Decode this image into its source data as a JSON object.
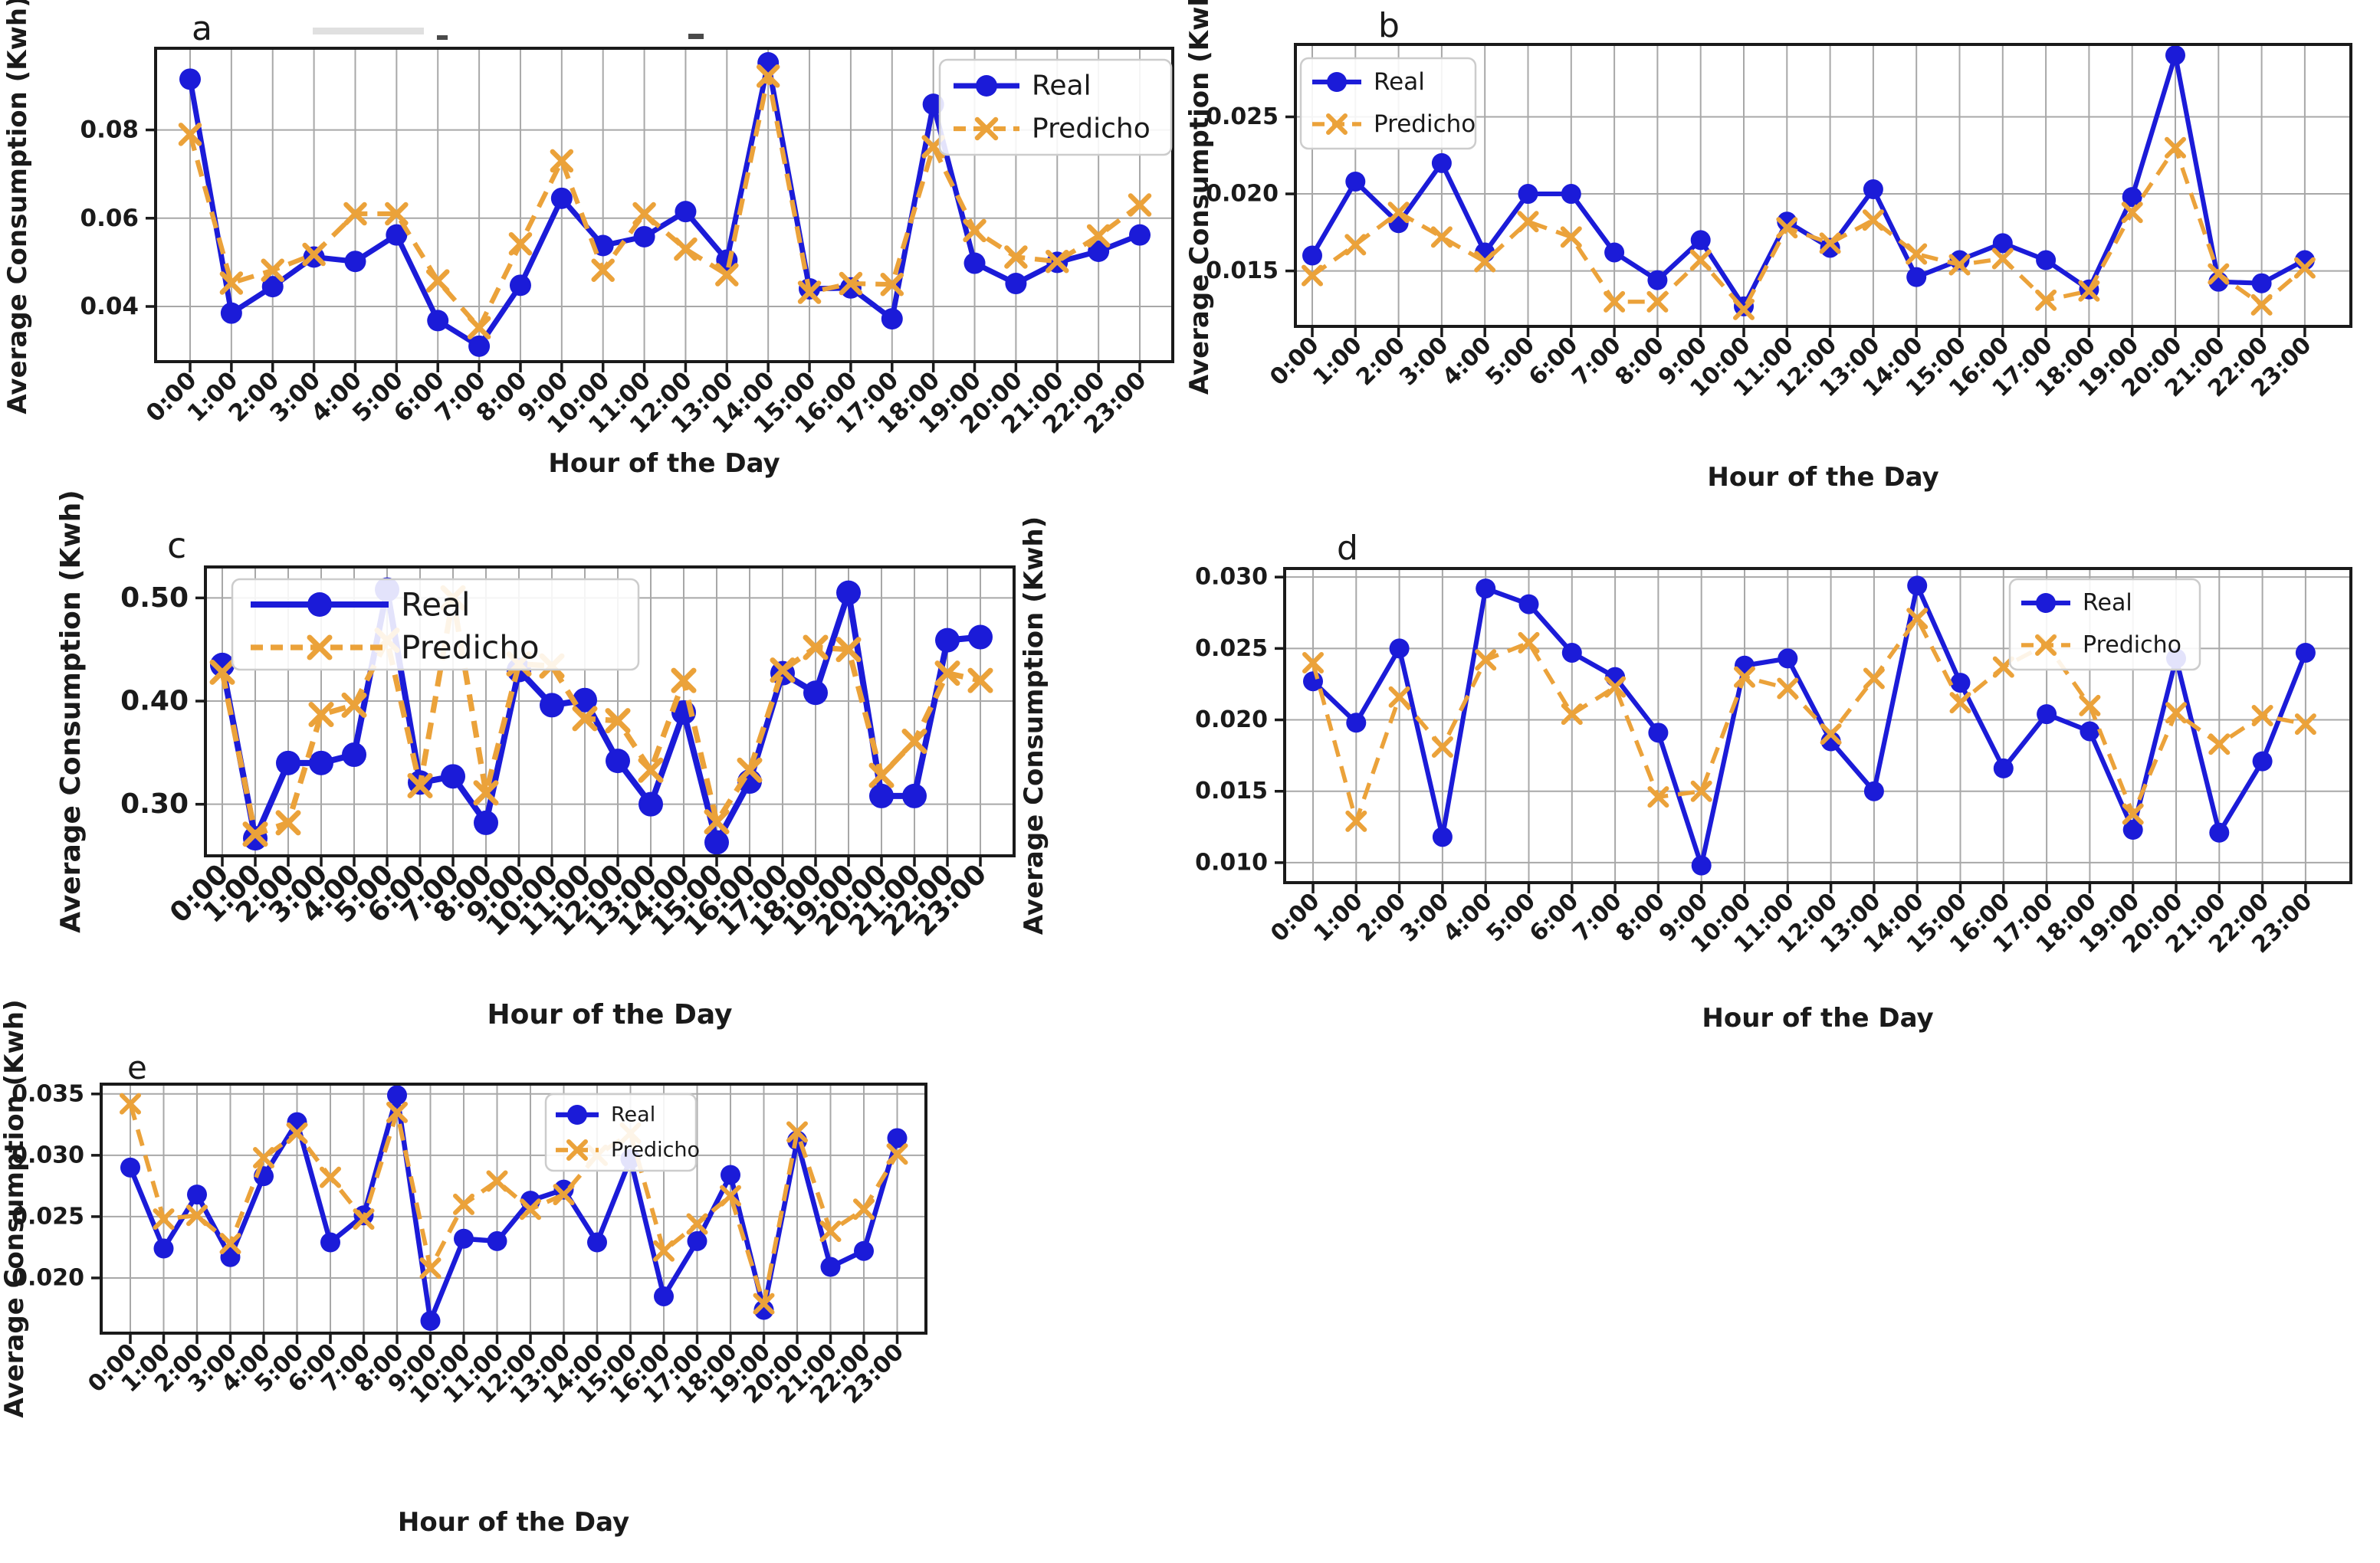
{
  "figure": {
    "xlabel": "Hour of the Day",
    "ylabel": "Average Consumption (Kwh)",
    "legend": {
      "real_label": "Real",
      "predicho_label": "Predicho"
    },
    "artifact_marks": [
      "smudge",
      "dash",
      "dash"
    ]
  },
  "colors": {
    "real": "#1b1bd8",
    "predicho": "#eba23a",
    "grid": "#a8a8a8",
    "spine": "#1a1a1a",
    "text": "#1a1a1a",
    "legend_border": "#cccccc",
    "legend_bg": "rgba(255,255,255,0.88)"
  },
  "chart_data": [
    {
      "id": "a",
      "type": "line",
      "title": "a",
      "xlabel": "Hour of the Day",
      "ylabel": "Average Consumption (Kwh)",
      "categories": [
        "0:00",
        "1:00",
        "2:00",
        "3:00",
        "4:00",
        "5:00",
        "6:00",
        "7:00",
        "8:00",
        "9:00",
        "10:00",
        "11:00",
        "12:00",
        "13:00",
        "14:00",
        "15:00",
        "16:00",
        "17:00",
        "18:00",
        "19:00",
        "20:00",
        "21:00",
        "22:00",
        "23:00"
      ],
      "yticks": [
        0.04,
        0.06,
        0.08
      ],
      "ytick_labels": [
        "0.04",
        "0.06",
        "0.08"
      ],
      "ylim": [
        0.0275,
        0.0985
      ],
      "grid": true,
      "legend_position": "top-right",
      "series": [
        {
          "name": "Real",
          "values": [
            0.0915,
            0.0385,
            0.0445,
            0.0512,
            0.0502,
            0.0562,
            0.0368,
            0.031,
            0.0448,
            0.0645,
            0.0538,
            0.0558,
            0.0615,
            0.0505,
            0.0952,
            0.044,
            0.0442,
            0.0372,
            0.0858,
            0.0498,
            0.0452,
            0.05,
            0.0525,
            0.0562
          ]
        },
        {
          "name": "Predicho",
          "values": [
            0.079,
            0.0453,
            0.0482,
            0.0518,
            0.061,
            0.061,
            0.0458,
            0.0352,
            0.0542,
            0.073,
            0.0482,
            0.061,
            0.053,
            0.0472,
            0.0922,
            0.0432,
            0.0452,
            0.045,
            0.0762,
            0.0572,
            0.0512,
            0.0502,
            0.056,
            0.063
          ]
        }
      ]
    },
    {
      "id": "b",
      "type": "line",
      "title": "b",
      "xlabel": "Hour of the Day",
      "ylabel": "Average Consumption (Kwh)",
      "categories": [
        "0:00",
        "1:00",
        "2:00",
        "3:00",
        "4:00",
        "5:00",
        "6:00",
        "7:00",
        "8:00",
        "9:00",
        "10:00",
        "11:00",
        "12:00",
        "13:00",
        "14:00",
        "15:00",
        "16:00",
        "17:00",
        "18:00",
        "19:00",
        "20:00",
        "21:00",
        "22:00",
        "23:00"
      ],
      "yticks": [
        0.015,
        0.02,
        0.025
      ],
      "ytick_labels": [
        "0.015",
        "0.020",
        "0.025"
      ],
      "ylim": [
        0.0114,
        0.0297
      ],
      "grid": true,
      "legend_position": "top-left",
      "series": [
        {
          "name": "Real",
          "values": [
            0.016,
            0.0208,
            0.0181,
            0.022,
            0.0162,
            0.02,
            0.02,
            0.0162,
            0.0144,
            0.017,
            0.0127,
            0.0182,
            0.0165,
            0.0203,
            0.0146,
            0.0157,
            0.0168,
            0.0157,
            0.0138,
            0.0198,
            0.029,
            0.0143,
            0.0142,
            0.0157
          ]
        },
        {
          "name": "Predicho",
          "values": [
            0.0147,
            0.0167,
            0.0188,
            0.0172,
            0.0156,
            0.0182,
            0.0172,
            0.013,
            0.013,
            0.0157,
            0.0125,
            0.0178,
            0.0168,
            0.0183,
            0.0161,
            0.0154,
            0.0158,
            0.0131,
            0.0137,
            0.0188,
            0.023,
            0.0148,
            0.0128,
            0.0152
          ]
        }
      ]
    },
    {
      "id": "c",
      "type": "line",
      "title": "c",
      "xlabel": "Hour of the Day",
      "ylabel": "Average Consumption (Kwh)",
      "categories": [
        "0:00",
        "1:00",
        "2:00",
        "3:00",
        "4:00",
        "5:00",
        "6:00",
        "7:00",
        "8:00",
        "9:00",
        "10:00",
        "11:00",
        "12:00",
        "13:00",
        "14:00",
        "15:00",
        "16:00",
        "17:00",
        "18:00",
        "19:00",
        "20:00",
        "21:00",
        "22:00",
        "23:00"
      ],
      "yticks": [
        0.3,
        0.4,
        0.5
      ],
      "ytick_labels": [
        "0.30",
        "0.40",
        "0.50"
      ],
      "ylim": [
        0.25,
        0.53
      ],
      "grid": true,
      "legend_position": "top-left",
      "series": [
        {
          "name": "Real",
          "values": [
            0.435,
            0.267,
            0.34,
            0.34,
            0.348,
            0.508,
            0.321,
            0.327,
            0.282,
            0.43,
            0.396,
            0.401,
            0.342,
            0.3,
            0.389,
            0.263,
            0.322,
            0.427,
            0.408,
            0.505,
            0.308,
            0.308,
            0.459,
            0.462
          ]
        },
        {
          "name": "Predicho",
          "values": [
            0.428,
            0.271,
            0.282,
            0.387,
            0.396,
            0.459,
            0.318,
            0.5,
            0.311,
            0.436,
            0.434,
            0.383,
            0.381,
            0.333,
            0.42,
            0.283,
            0.333,
            0.43,
            0.452,
            0.45,
            0.328,
            0.361,
            0.427,
            0.42
          ]
        }
      ]
    },
    {
      "id": "d",
      "type": "line",
      "title": "d",
      "xlabel": "Hour of the Day",
      "ylabel": "Average Consumption (Kwh)",
      "categories": [
        "0:00",
        "1:00",
        "2:00",
        "3:00",
        "4:00",
        "5:00",
        "6:00",
        "7:00",
        "8:00",
        "9:00",
        "10:00",
        "11:00",
        "12:00",
        "13:00",
        "14:00",
        "15:00",
        "16:00",
        "17:00",
        "18:00",
        "19:00",
        "20:00",
        "21:00",
        "22:00",
        "23:00"
      ],
      "yticks": [
        0.01,
        0.015,
        0.02,
        0.025,
        0.03
      ],
      "ytick_labels": [
        "0.010",
        "0.015",
        "0.020",
        "0.025",
        "0.030"
      ],
      "ylim": [
        0.0086,
        0.0306
      ],
      "grid": true,
      "legend_position": "top-right",
      "series": [
        {
          "name": "Real",
          "values": [
            0.0227,
            0.0198,
            0.025,
            0.0118,
            0.0292,
            0.0281,
            0.0247,
            0.023,
            0.0191,
            0.0098,
            0.0238,
            0.0243,
            0.0185,
            0.015,
            0.0294,
            0.0226,
            0.0166,
            0.0204,
            0.0192,
            0.0123,
            0.0243,
            0.0121,
            0.0171,
            0.0247
          ]
        },
        {
          "name": "Predicho",
          "values": [
            0.024,
            0.0129,
            0.0216,
            0.0181,
            0.0242,
            0.0254,
            0.0204,
            0.0223,
            0.0146,
            0.015,
            0.023,
            0.0222,
            0.019,
            0.0229,
            0.0271,
            0.0212,
            0.0237,
            0.0253,
            0.021,
            0.0134,
            0.0205,
            0.0183,
            0.0203,
            0.0197
          ]
        }
      ]
    },
    {
      "id": "e",
      "type": "line",
      "title": "e",
      "xlabel": "Hour of the Day",
      "ylabel": "Average Consumption (Kwh)",
      "categories": [
        "0:00",
        "1:00",
        "2:00",
        "3:00",
        "4:00",
        "5:00",
        "6:00",
        "7:00",
        "8:00",
        "9:00",
        "10:00",
        "11:00",
        "12:00",
        "13:00",
        "14:00",
        "15:00",
        "16:00",
        "17:00",
        "18:00",
        "19:00",
        "20:00",
        "21:00",
        "22:00",
        "23:00"
      ],
      "yticks": [
        0.02,
        0.025,
        0.03,
        0.035
      ],
      "ytick_labels": [
        "0.020",
        "0.025",
        "0.030",
        "0.035"
      ],
      "ylim": [
        0.0155,
        0.0358
      ],
      "grid": true,
      "legend_position": "top-center",
      "series": [
        {
          "name": "Real",
          "values": [
            0.029,
            0.0224,
            0.0268,
            0.0217,
            0.0283,
            0.0327,
            0.0229,
            0.0251,
            0.0349,
            0.0165,
            0.0232,
            0.023,
            0.0263,
            0.0272,
            0.0229,
            0.0297,
            0.0185,
            0.023,
            0.0284,
            0.0174,
            0.0312,
            0.0209,
            0.0222,
            0.0314
          ]
        },
        {
          "name": "Predicho",
          "values": [
            0.0342,
            0.0248,
            0.0251,
            0.0228,
            0.0298,
            0.0318,
            0.0282,
            0.0248,
            0.0335,
            0.0208,
            0.026,
            0.0279,
            0.0256,
            0.0268,
            0.03,
            0.0318,
            0.0222,
            0.0244,
            0.0267,
            0.0179,
            0.0319,
            0.0238,
            0.0256,
            0.0301
          ]
        }
      ]
    }
  ]
}
